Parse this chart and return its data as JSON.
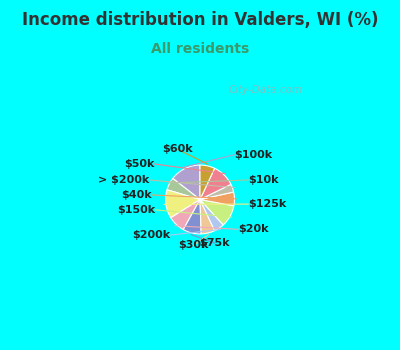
{
  "title": "Income distribution in Valders, WI (%)",
  "subtitle": "All residents",
  "background_color": "#00FFFF",
  "chart_bg_color": "#d8ede0",
  "watermark": "City-Data.com",
  "segments": [
    {
      "label": "$100k",
      "value": 13.5,
      "color": "#b0a0d0"
    },
    {
      "label": "$10k",
      "value": 5.5,
      "color": "#a8c89a"
    },
    {
      "label": "$125k",
      "value": 12.5,
      "color": "#f0f080"
    },
    {
      "label": "$20k",
      "value": 7.5,
      "color": "#f0a8b8"
    },
    {
      "label": "$75k",
      "value": 8.0,
      "color": "#8090d0"
    },
    {
      "label": "$30k",
      "value": 6.0,
      "color": "#f0c898"
    },
    {
      "label": "$200k",
      "value": 4.5,
      "color": "#b0c8f0"
    },
    {
      "label": "$150k",
      "value": 9.5,
      "color": "#c8f080"
    },
    {
      "label": "$40k",
      "value": 6.0,
      "color": "#f0a060"
    },
    {
      "label": "> $200k",
      "value": 3.5,
      "color": "#c0bda8"
    },
    {
      "label": "$50k",
      "value": 10.0,
      "color": "#f08090"
    },
    {
      "label": "$60k",
      "value": 6.5,
      "color": "#c8a030"
    }
  ],
  "title_fontsize": 12,
  "subtitle_fontsize": 10,
  "label_fontsize": 8
}
